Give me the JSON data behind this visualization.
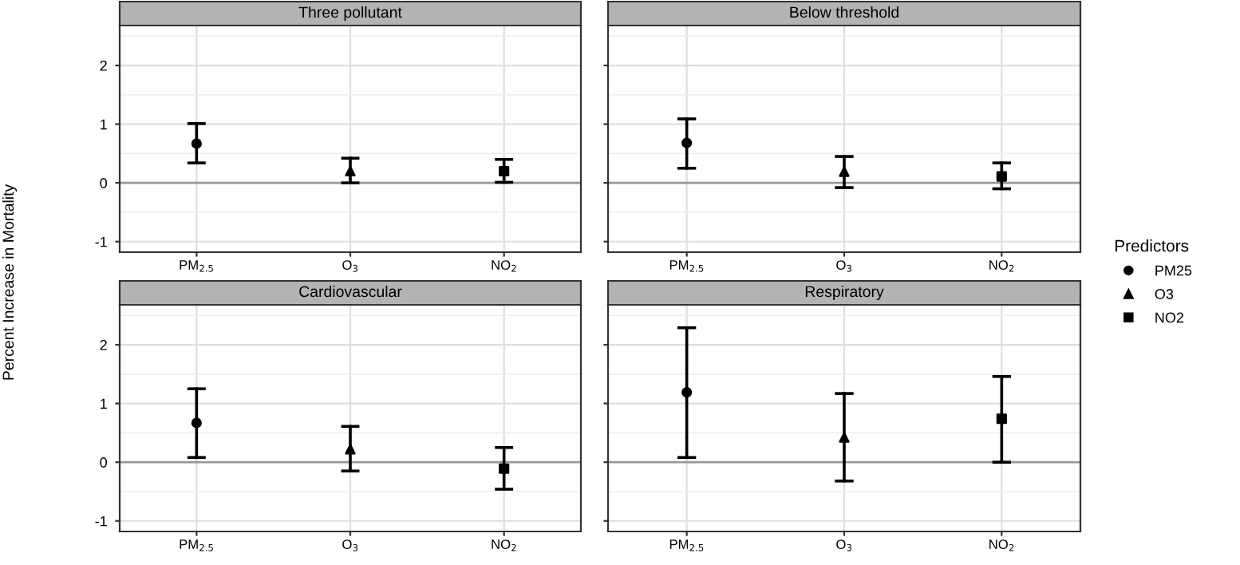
{
  "chart_data": [
    {
      "type": "scatter",
      "title": "Three pollutant",
      "ylabel": "Percent Increase in Mortality",
      "legend_title": "Predictors",
      "legend": "right",
      "categories": [
        "PM$_{2.5}$",
        "O$_{3}$",
        "NO$_{2}$"
      ],
      "ylim": [
        -1.18,
        2.68
      ],
      "yticks": [
        -1,
        0,
        1,
        2
      ],
      "grid": true,
      "tick_labels": "xy",
      "ref_lines": [
        {
          "axis": "y",
          "value": 0,
          "color": "#999999"
        }
      ],
      "series": [
        {
          "name": "PM25",
          "color": "#000000",
          "marker": "circle",
          "values": [
            0.67,
            null,
            null
          ],
          "errors": [
            [
              0.34,
              1.01
            ],
            null,
            null
          ]
        },
        {
          "name": "O3",
          "color": "#000000",
          "marker": "triangle",
          "values": [
            null,
            0.2,
            null
          ],
          "errors": [
            null,
            [
              0.0,
              0.42
            ],
            null
          ]
        },
        {
          "name": "NO2",
          "color": "#000000",
          "marker": "square",
          "values": [
            null,
            null,
            0.2
          ],
          "errors": [
            null,
            null,
            [
              0.01,
              0.4
            ]
          ]
        }
      ]
    },
    {
      "type": "scatter",
      "title": "Below threshold",
      "categories": [
        "PM$_{2.5}$",
        "O$_{3}$",
        "NO$_{2}$"
      ],
      "ylim": [
        -1.18,
        2.68
      ],
      "grid": true,
      "tick_labels": "x",
      "ref_lines": [
        {
          "axis": "y",
          "value": 0,
          "color": "#999999"
        }
      ],
      "series": [
        {
          "color": "#000000",
          "marker": "circle",
          "values": [
            0.68,
            null,
            null
          ],
          "errors": [
            [
              0.25,
              1.09
            ],
            null,
            null
          ]
        },
        {
          "color": "#000000",
          "marker": "triangle",
          "values": [
            null,
            0.19,
            null
          ],
          "errors": [
            null,
            [
              -0.08,
              0.45
            ],
            null
          ]
        },
        {
          "color": "#000000",
          "marker": "square",
          "values": [
            null,
            null,
            0.11
          ],
          "errors": [
            null,
            null,
            [
              -0.1,
              0.34
            ]
          ]
        }
      ]
    },
    {
      "type": "scatter",
      "title": "Cardiovascular",
      "categories": [
        "PM$_{2.5}$",
        "O$_{3}$",
        "NO$_{2}$"
      ],
      "ylim": [
        -1.18,
        2.68
      ],
      "yticks": [
        -1,
        0,
        1,
        2
      ],
      "grid": true,
      "tick_labels": "xy",
      "ref_lines": [
        {
          "axis": "y",
          "value": 0,
          "color": "#999999"
        }
      ],
      "series": [
        {
          "color": "#000000",
          "marker": "circle",
          "values": [
            0.67,
            null,
            null
          ],
          "errors": [
            [
              0.08,
              1.25
            ],
            null,
            null
          ]
        },
        {
          "color": "#000000",
          "marker": "triangle",
          "values": [
            null,
            0.22,
            null
          ],
          "errors": [
            null,
            [
              -0.15,
              0.61
            ],
            null
          ]
        },
        {
          "color": "#000000",
          "marker": "square",
          "values": [
            null,
            null,
            -0.11
          ],
          "errors": [
            null,
            null,
            [
              -0.46,
              0.25
            ]
          ]
        }
      ]
    },
    {
      "type": "scatter",
      "title": "Respiratory",
      "categories": [
        "PM$_{2.5}$",
        "O$_{3}$",
        "NO$_{2}$"
      ],
      "ylim": [
        -1.18,
        2.68
      ],
      "grid": true,
      "tick_labels": "x",
      "ref_lines": [
        {
          "axis": "y",
          "value": 0,
          "color": "#999999"
        }
      ],
      "series": [
        {
          "color": "#000000",
          "marker": "circle",
          "values": [
            1.19,
            null,
            null
          ],
          "errors": [
            [
              0.08,
              2.29
            ],
            null,
            null
          ]
        },
        {
          "color": "#000000",
          "marker": "triangle",
          "values": [
            null,
            0.42,
            null
          ],
          "errors": [
            null,
            [
              -0.32,
              1.17
            ],
            null
          ]
        },
        {
          "color": "#000000",
          "marker": "square",
          "values": [
            null,
            null,
            0.74
          ],
          "errors": [
            null,
            null,
            [
              0.0,
              1.46
            ]
          ]
        }
      ]
    }
  ]
}
